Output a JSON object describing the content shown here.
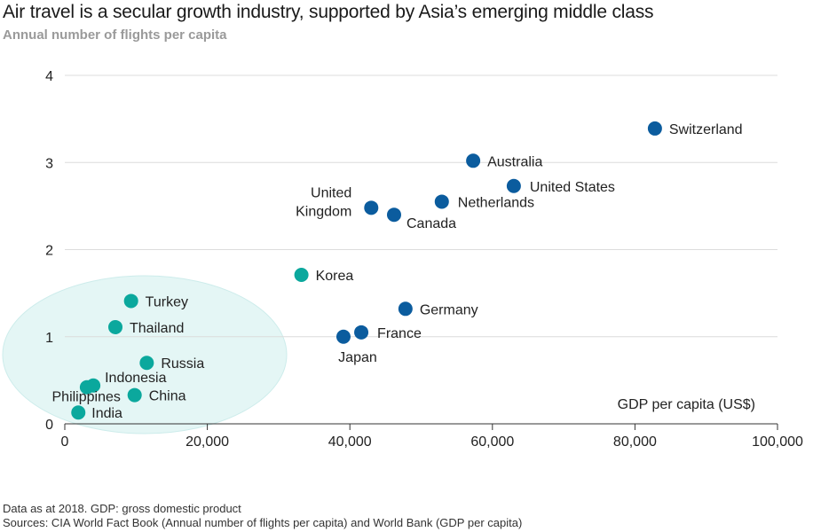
{
  "chart_data": {
    "type": "scatter",
    "title": "Air travel is a secular growth industry, supported by Asia’s emerging middle class",
    "subtitle": "Annual number of flights per capita",
    "xlabel": "GDP per capita (US$)",
    "ylabel": "",
    "xlim": [
      0,
      100000
    ],
    "ylim": [
      0,
      4
    ],
    "x_ticks": [
      "0",
      "20,000",
      "40,000",
      "60,000",
      "80,000",
      "100,000"
    ],
    "y_ticks": [
      "0",
      "1",
      "2",
      "3",
      "4"
    ],
    "grid": "horizontal",
    "colors": {
      "developed": "#0b5c9e",
      "emerging": "#0ba89d",
      "highlight": "#dff4f3"
    },
    "points": [
      {
        "name": "Switzerland",
        "x": 82800,
        "y": 3.39,
        "group": "developed"
      },
      {
        "name": "Australia",
        "x": 57300,
        "y": 3.02,
        "group": "developed"
      },
      {
        "name": "United States",
        "x": 63000,
        "y": 2.73,
        "group": "developed"
      },
      {
        "name": "Netherlands",
        "x": 52900,
        "y": 2.55,
        "group": "developed"
      },
      {
        "name": "United Kingdom",
        "x": 43000,
        "y": 2.48,
        "group": "developed"
      },
      {
        "name": "Canada",
        "x": 46200,
        "y": 2.4,
        "group": "developed"
      },
      {
        "name": "Korea",
        "x": 33200,
        "y": 1.71,
        "group": "emerging"
      },
      {
        "name": "Germany",
        "x": 47800,
        "y": 1.32,
        "group": "developed"
      },
      {
        "name": "France",
        "x": 41600,
        "y": 1.05,
        "group": "developed"
      },
      {
        "name": "Japan",
        "x": 39100,
        "y": 1.0,
        "group": "developed"
      },
      {
        "name": "Turkey",
        "x": 9300,
        "y": 1.41,
        "group": "emerging"
      },
      {
        "name": "Thailand",
        "x": 7100,
        "y": 1.11,
        "group": "emerging"
      },
      {
        "name": "Russia",
        "x": 11500,
        "y": 0.7,
        "group": "emerging"
      },
      {
        "name": "Indonesia",
        "x": 4000,
        "y": 0.44,
        "group": "emerging"
      },
      {
        "name": "Philippines",
        "x": 3100,
        "y": 0.42,
        "group": "emerging"
      },
      {
        "name": "China",
        "x": 9800,
        "y": 0.33,
        "group": "emerging"
      },
      {
        "name": "India",
        "x": 1900,
        "y": 0.13,
        "group": "emerging"
      }
    ]
  },
  "footnotes": [
    "Data as at 2018. GDP: gross domestic product",
    "Sources: CIA World Fact Book (Annual number of flights per capita) and World Bank (GDP per capita)"
  ]
}
